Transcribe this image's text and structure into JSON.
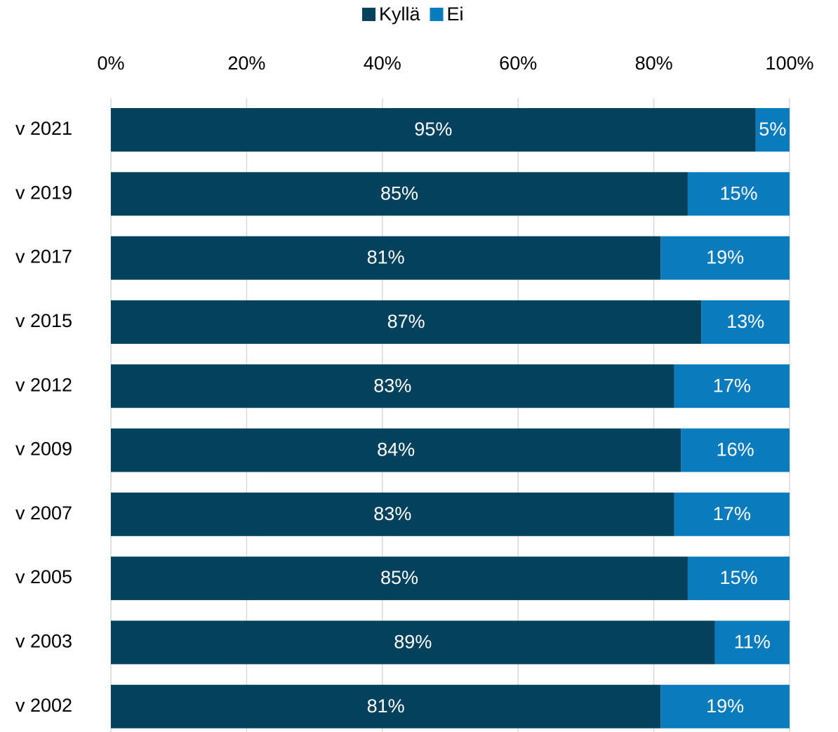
{
  "chart_data": {
    "type": "stacked_bar_horizontal",
    "categories": [
      "v 2021",
      "v 2019",
      "v 2017",
      "v 2015",
      "v 2012",
      "v 2009",
      "v 2007",
      "v 2005",
      "v 2003",
      "v 2002"
    ],
    "series": [
      {
        "name": "Kyllä",
        "color": "#03415c",
        "values": [
          95,
          85,
          81,
          87,
          83,
          84,
          83,
          85,
          89,
          81
        ],
        "value_labels": [
          "95%",
          "85%",
          "81%",
          "87%",
          "83%",
          "84%",
          "83%",
          "85%",
          "89%",
          "81%"
        ]
      },
      {
        "name": "Ei",
        "color": "#0a7bbd",
        "values": [
          5,
          15,
          19,
          13,
          17,
          16,
          17,
          15,
          11,
          19
        ],
        "value_labels": [
          "5%",
          "15%",
          "19%",
          "13%",
          "17%",
          "16%",
          "17%",
          "15%",
          "11%",
          "19%"
        ]
      }
    ],
    "xlim": [
      0,
      100
    ],
    "xticks": [
      {
        "value": 0,
        "label": "0%"
      },
      {
        "value": 20,
        "label": "20%"
      },
      {
        "value": 40,
        "label": "40%"
      },
      {
        "value": 60,
        "label": "60%"
      },
      {
        "value": 80,
        "label": "80%"
      },
      {
        "value": 100,
        "label": "100%"
      }
    ],
    "grid": true,
    "legend": "top"
  }
}
